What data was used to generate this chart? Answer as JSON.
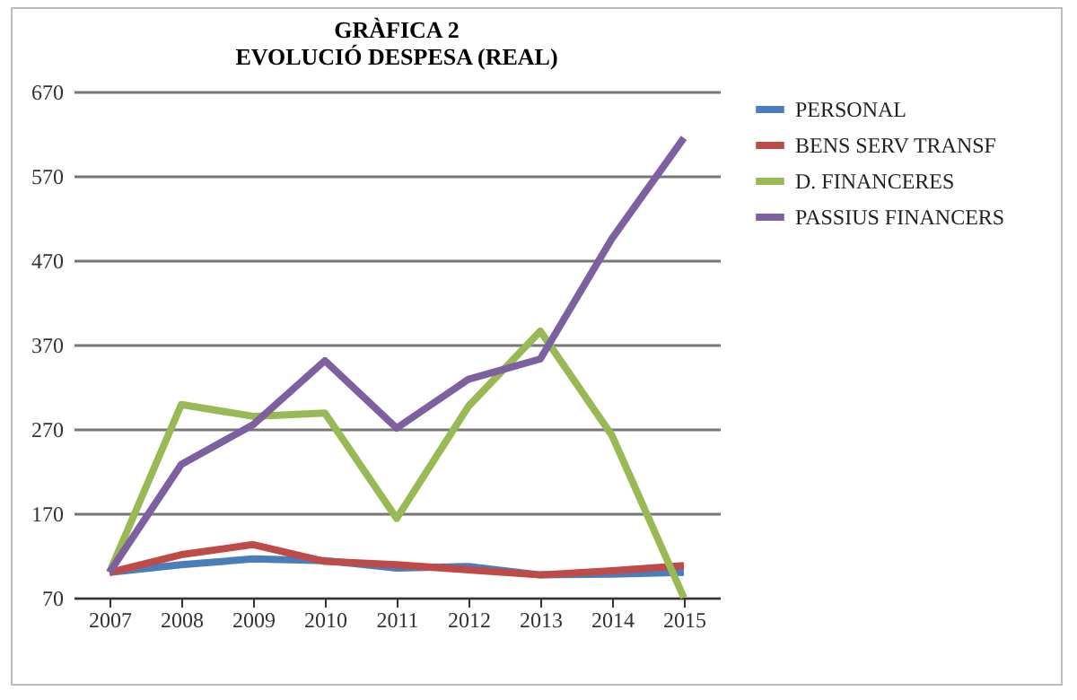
{
  "chart_data": {
    "type": "line",
    "title": "GRÀFICA 2",
    "subtitle": "EVOLUCIÓ DESPESA (REAL)",
    "categories": [
      "2007",
      "2008",
      "2009",
      "2010",
      "2011",
      "2012",
      "2013",
      "2014",
      "2015"
    ],
    "series": [
      {
        "name": "PERSONAL",
        "color": "#4a7ebb",
        "values": [
          100,
          109,
          116,
          114,
          105,
          107,
          97,
          98,
          100
        ]
      },
      {
        "name": "BENS SERV TRANSF",
        "color": "#be4b48",
        "values": [
          100,
          121,
          133,
          113,
          109,
          103,
          97,
          102,
          108
        ]
      },
      {
        "name": "D. FINANCERES",
        "color": "#98b954",
        "values": [
          100,
          299,
          285,
          289,
          164,
          297,
          386,
          262,
          70
        ]
      },
      {
        "name": "PASSIUS FINANCERS",
        "color": "#7d60a0",
        "values": [
          100,
          228,
          275,
          351,
          271,
          329,
          353,
          496,
          615
        ]
      }
    ],
    "ylim": [
      70,
      670
    ],
    "yticks": [
      70,
      170,
      270,
      370,
      470,
      570,
      670
    ],
    "grid": "y",
    "legend": "right",
    "line_style": "solid",
    "marker": "none"
  }
}
